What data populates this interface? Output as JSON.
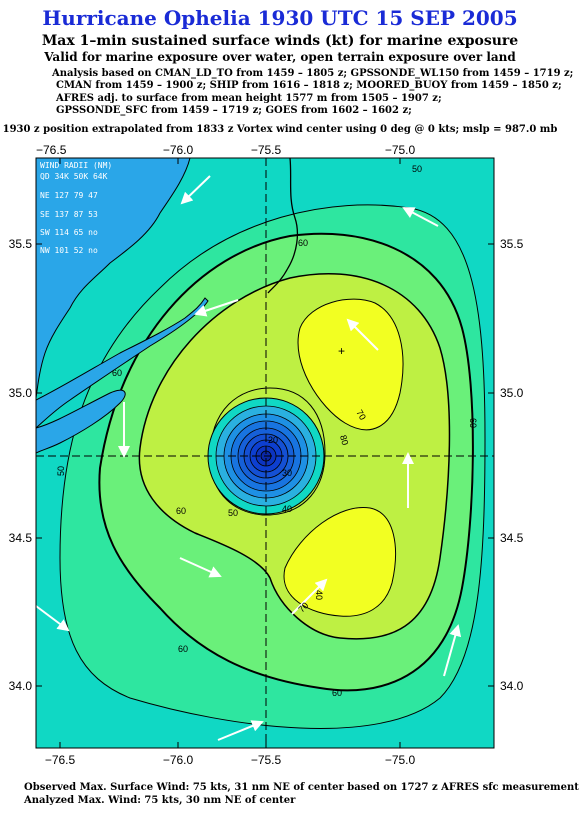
{
  "title": "Hurricane Ophelia 1930 UTC 15 SEP 2005",
  "subtitle": "Max 1–min sustained surface winds (kt) for marine exposure",
  "subtitle2": "Valid for marine exposure over water, open terrain exposure over land",
  "analysis_lines": [
    "Analysis based on  CMAN_LD_TO from 1459 – 1805 z;  GPSSONDE_WL150 from 1459 – 1719 z;",
    "CMAN from 1459 – 1900 z;  SHIP from 1616 – 1818 z;  MOORED_BUOY from 1459 – 1850 z;",
    "AFRES adj. to surface from mean height 1577 m from 1505 – 1907 z;",
    "GPSSONDE_SFC from 1459 – 1719 z;  GOES from 1602 – 1602 z;"
  ],
  "position_line": "1930 z position extrapolated from 1833 z Vortex wind center using 0 deg @ 0 kts; mslp = 987.0 mb",
  "map": {
    "lon_ticks": [
      "−76.5",
      "−76.0",
      "−75.5",
      "−75.0"
    ],
    "lat_ticks": [
      "35.5",
      "35.0",
      "34.5",
      "34.0"
    ],
    "contour_labels": [
      "50",
      "50",
      "60",
      "60",
      "60",
      "60",
      "70",
      "80",
      "20",
      "30",
      "40",
      "60",
      "40",
      "70",
      "50",
      "60"
    ],
    "wind_radii": {
      "header": "WIND RADII (NM)",
      "columns": "QD 34K 50K 64K",
      "rows": [
        "NE 127  79  47",
        "SE 137  87  53",
        "SW 114  65  no",
        "NW 101  52  no"
      ]
    },
    "colors": {
      "land": "#2aa6e8",
      "ocean": "#10d8c4",
      "c50": "#2ee6a0",
      "c60": "#6af07a",
      "c70": "#bef043",
      "c80": "#f2ff22",
      "eye": "#1874e0",
      "eye_core": "#0d3fd0"
    }
  },
  "footer": {
    "line1": "Observed Max. Surface Wind: 75 kts, 31 nm NE of center based on 1727 z AFRES sfc measurement",
    "line2": "Analyzed Max. Wind: 75 kts, 30 nm NE of center"
  }
}
